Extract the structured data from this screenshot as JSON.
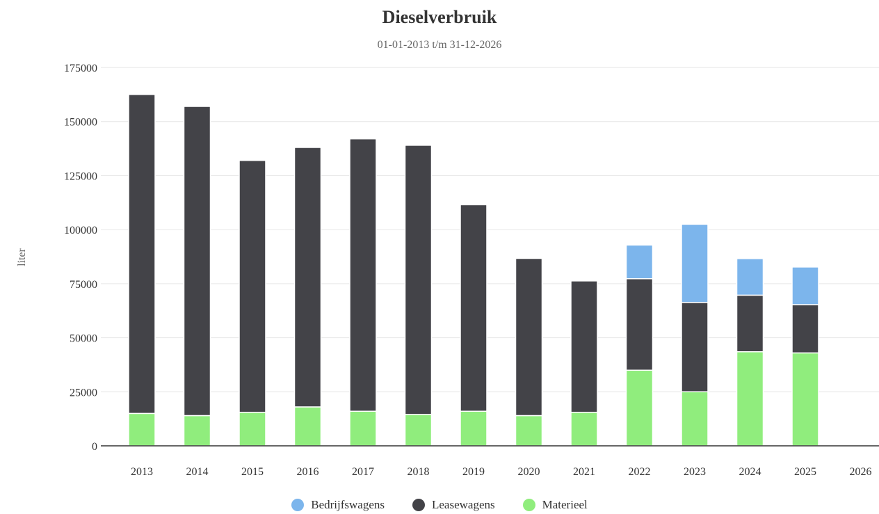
{
  "chart_data": {
    "type": "bar",
    "stacked": true,
    "title": "Dieselverbruik",
    "subtitle": "01-01-2013 t/m 31-12-2026",
    "xlabel": "",
    "ylabel": "liter",
    "ylim": [
      0,
      175000
    ],
    "yticks": [
      0,
      25000,
      50000,
      75000,
      100000,
      125000,
      150000,
      175000
    ],
    "grid": true,
    "legend_position": "bottom-center",
    "categories": [
      "2013",
      "2014",
      "2015",
      "2016",
      "2017",
      "2018",
      "2019",
      "2020",
      "2021",
      "2022",
      "2023",
      "2024",
      "2025",
      "2026"
    ],
    "series": [
      {
        "name": "Materieel",
        "color": "#90ed7d",
        "values": [
          15000,
          14000,
          15500,
          18000,
          16000,
          14500,
          16000,
          14000,
          15500,
          35000,
          25000,
          43500,
          43000,
          0
        ]
      },
      {
        "name": "Leasewagens",
        "color": "#434348",
        "values": [
          147500,
          143000,
          116500,
          120000,
          126000,
          124500,
          95500,
          72700,
          60800,
          42300,
          41300,
          26200,
          22300,
          0
        ]
      },
      {
        "name": "Bedrijfswagens",
        "color": "#7cb5ec",
        "values": [
          0,
          0,
          0,
          0,
          0,
          0,
          0,
          0,
          0,
          15600,
          36200,
          16900,
          17400,
          0
        ]
      }
    ],
    "legend_order": [
      "Bedrijfswagens",
      "Leasewagens",
      "Materieel"
    ]
  }
}
